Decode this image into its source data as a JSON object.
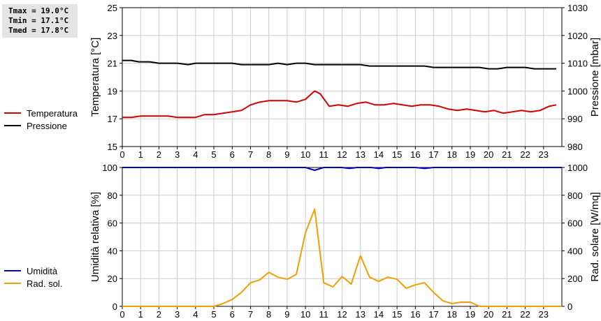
{
  "stats": {
    "tmax": "Tmax = 19.0°C",
    "tmin": "Tmin = 17.1°C",
    "tmed": "Tmed = 17.8°C"
  },
  "chart_data": [
    {
      "type": "line",
      "ylabel": "Temperatura [°C]",
      "y2label": "Pressione [mbar]",
      "xlim": [
        0,
        24
      ],
      "ylim": [
        15,
        25
      ],
      "y2lim": [
        980,
        1030
      ],
      "x_ticks": [
        "0",
        "1",
        "2",
        "3",
        "4",
        "5",
        "6",
        "7",
        "8",
        "9",
        "10",
        "11",
        "12",
        "13",
        "14",
        "15",
        "16",
        "17",
        "18",
        "19",
        "20",
        "21",
        "22",
        "23"
      ],
      "y_ticks": [
        "15",
        "17",
        "19",
        "21",
        "23",
        "25"
      ],
      "y2_ticks": [
        "980",
        "990",
        "1000",
        "1010",
        "1020",
        "1030"
      ],
      "grid": true,
      "legend": [
        {
          "name": "Temperatura",
          "color": "#d40000"
        },
        {
          "name": "Pressione",
          "color": "#000000"
        }
      ],
      "series": [
        {
          "name": "Temperatura",
          "color": "#d40000",
          "axis": "left",
          "x": [
            0,
            0.5,
            1,
            1.5,
            2,
            2.5,
            3,
            3.5,
            4,
            4.5,
            5,
            5.5,
            6,
            6.5,
            7,
            7.5,
            8,
            8.5,
            9,
            9.5,
            10,
            10.5,
            10.8,
            11.3,
            11.8,
            12.3,
            12.8,
            13.3,
            13.8,
            14.3,
            14.8,
            15.3,
            15.8,
            16.3,
            16.8,
            17.3,
            17.8,
            18.3,
            18.8,
            19.3,
            19.8,
            20.3,
            20.8,
            21.3,
            21.8,
            22.3,
            22.8,
            23.3,
            23.7
          ],
          "y": [
            17.1,
            17.1,
            17.2,
            17.2,
            17.2,
            17.2,
            17.1,
            17.1,
            17.1,
            17.3,
            17.3,
            17.4,
            17.5,
            17.6,
            18.0,
            18.2,
            18.3,
            18.3,
            18.3,
            18.2,
            18.4,
            19.0,
            18.8,
            17.9,
            18.0,
            17.9,
            18.1,
            18.2,
            18.0,
            18.0,
            18.1,
            18.0,
            17.9,
            18.0,
            18.0,
            17.9,
            17.7,
            17.6,
            17.7,
            17.6,
            17.5,
            17.6,
            17.4,
            17.5,
            17.6,
            17.5,
            17.6,
            17.9,
            18.0
          ]
        },
        {
          "name": "Pressione",
          "color": "#000000",
          "axis": "right",
          "x": [
            0,
            0.5,
            0.9,
            1.5,
            2,
            2.5,
            3,
            3.6,
            4,
            4.5,
            5,
            5.5,
            6,
            6.5,
            7,
            7.5,
            8,
            8.5,
            9,
            9.5,
            10,
            10.5,
            11,
            11.5,
            12,
            12.5,
            13,
            13.5,
            14,
            14.5,
            15,
            15.5,
            16,
            16.5,
            17,
            17.5,
            18,
            18.5,
            19,
            19.5,
            20,
            20.5,
            21,
            21.5,
            22,
            22.5,
            23,
            23.7
          ],
          "y": [
            1011,
            1011,
            1010.5,
            1010.5,
            1010,
            1010,
            1010,
            1009.5,
            1010,
            1010,
            1010,
            1010,
            1010,
            1009.5,
            1009.5,
            1009.5,
            1009.5,
            1010,
            1009.5,
            1010,
            1010,
            1009.5,
            1009.5,
            1009.5,
            1009.5,
            1009.5,
            1009.5,
            1009,
            1009,
            1009,
            1009,
            1009,
            1009,
            1009,
            1008.5,
            1008.5,
            1008.5,
            1008.5,
            1008.5,
            1008.5,
            1008,
            1008,
            1008.5,
            1008.5,
            1008.5,
            1008,
            1008,
            1008
          ]
        }
      ]
    },
    {
      "type": "line",
      "ylabel": "Umidità relativa [%]",
      "y2label": "Rad. solare [W/mq]",
      "xlim": [
        0,
        24
      ],
      "ylim": [
        0,
        100
      ],
      "y2lim": [
        0,
        1000
      ],
      "x_ticks": [
        "0",
        "1",
        "2",
        "3",
        "4",
        "5",
        "6",
        "7",
        "8",
        "9",
        "10",
        "11",
        "12",
        "13",
        "14",
        "15",
        "16",
        "17",
        "18",
        "19",
        "20",
        "21",
        "22",
        "23"
      ],
      "y_ticks": [
        "0",
        "20",
        "40",
        "60",
        "80",
        "100"
      ],
      "y2_ticks": [
        "0",
        "200",
        "400",
        "600",
        "800",
        "1000"
      ],
      "grid": true,
      "legend": [
        {
          "name": "Umidità",
          "color": "#0000c8"
        },
        {
          "name": "Rad. sol.",
          "color": "#f0a000"
        }
      ],
      "series": [
        {
          "name": "Umidità",
          "color": "#0000c8",
          "axis": "left",
          "x": [
            0,
            10,
            10.5,
            11,
            12,
            12.4,
            12.8,
            13.6,
            14,
            14.4,
            15,
            16,
            16.5,
            17,
            24
          ],
          "y": [
            100,
            100,
            98,
            100,
            100,
            99.3,
            100,
            100,
            99.3,
            100,
            100,
            100,
            99.3,
            100,
            100
          ]
        },
        {
          "name": "Rad. sol.",
          "color": "#f0a000",
          "axis": "right",
          "x": [
            0,
            5,
            5.5,
            6,
            6.5,
            7,
            7.5,
            8,
            8.5,
            9,
            9.5,
            10,
            10.5,
            11,
            11.5,
            12,
            12.5,
            13,
            13.5,
            14,
            14.5,
            15,
            15.5,
            16,
            16.5,
            17,
            17.5,
            18,
            18.5,
            19,
            19.5,
            24
          ],
          "y": [
            0,
            0,
            20,
            50,
            100,
            170,
            190,
            245,
            210,
            195,
            230,
            530,
            700,
            170,
            140,
            215,
            160,
            365,
            210,
            180,
            210,
            195,
            130,
            155,
            170,
            100,
            40,
            20,
            30,
            30,
            0,
            0
          ]
        }
      ]
    }
  ]
}
